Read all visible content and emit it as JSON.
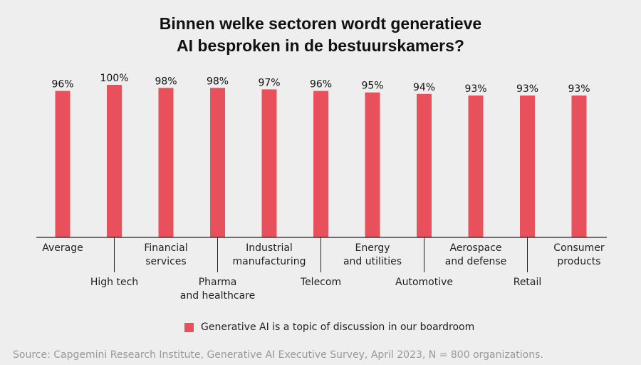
{
  "chart_data": {
    "type": "bar",
    "title": "Binnen welke sectoren wordt generatieve AI besproken in de bestuurskamers?",
    "title_lines": [
      "Binnen welke sectoren wordt generatieve",
      "AI besproken in de bestuurskamers?"
    ],
    "categories": [
      [
        "Average"
      ],
      [
        "High tech"
      ],
      [
        "Financial",
        "services"
      ],
      [
        "Pharma",
        "and healthcare"
      ],
      [
        "Industrial",
        "manufacturing"
      ],
      [
        "Telecom"
      ],
      [
        "Energy",
        "and utilities"
      ],
      [
        "Automotive"
      ],
      [
        "Aerospace",
        "and defense"
      ],
      [
        "Retail"
      ],
      [
        "Consumer",
        "products"
      ]
    ],
    "series": [
      {
        "name": "Generative AI is a topic of discussion in our boardroom",
        "values": [
          96,
          100,
          98,
          98,
          97,
          96,
          95,
          94,
          93,
          93,
          93
        ]
      }
    ],
    "data_labels": [
      "96%",
      "100%",
      "98%",
      "98%",
      "97%",
      "96%",
      "95%",
      "94%",
      "93%",
      "93%",
      "93%"
    ],
    "ylim": [
      0,
      100
    ],
    "grid": false,
    "legend_position": "bottom",
    "color": "#e8515b",
    "source": "Source: Capgemini Research Institute, Generative AI Executive Survey, April 2023, N = 800 organizations."
  }
}
